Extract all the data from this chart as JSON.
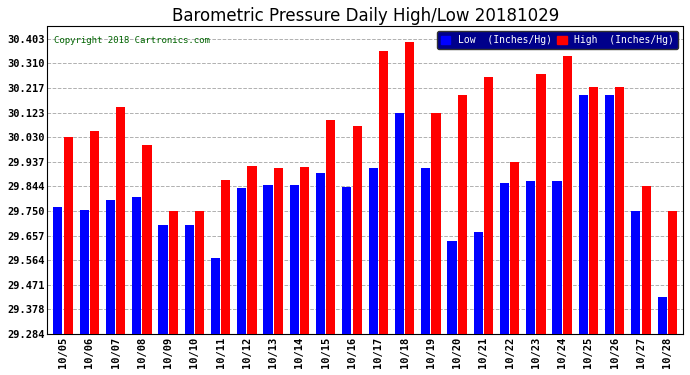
{
  "title": "Barometric Pressure Daily High/Low 20181029",
  "copyright": "Copyright 2018 Cartronics.com",
  "dates": [
    "10/05",
    "10/06",
    "10/07",
    "10/08",
    "10/09",
    "10/10",
    "10/11",
    "10/12",
    "10/13",
    "10/14",
    "10/15",
    "10/16",
    "10/17",
    "10/18",
    "10/19",
    "10/20",
    "10/21",
    "10/22",
    "10/23",
    "10/24",
    "10/25",
    "10/26",
    "10/27",
    "10/28"
  ],
  "low": [
    29.765,
    29.753,
    29.793,
    29.803,
    29.699,
    29.699,
    29.571,
    29.836,
    29.848,
    29.848,
    29.893,
    29.84,
    29.912,
    30.123,
    29.912,
    29.636,
    29.671,
    29.856,
    29.864,
    29.864,
    30.19,
    30.19,
    29.751,
    29.425
  ],
  "high": [
    30.03,
    30.055,
    30.143,
    30.0,
    29.75,
    29.75,
    29.869,
    29.92,
    29.913,
    29.918,
    30.097,
    30.072,
    30.356,
    30.39,
    30.123,
    30.19,
    30.257,
    29.937,
    30.27,
    30.34,
    30.22,
    30.22,
    29.844,
    29.75
  ],
  "low_color": "#0000ff",
  "high_color": "#ff0000",
  "bg_color": "#ffffff",
  "grid_color": "#b0b0b0",
  "ylim_min": 29.284,
  "ylim_max": 30.45,
  "yticks": [
    29.284,
    29.378,
    29.471,
    29.564,
    29.657,
    29.75,
    29.844,
    29.937,
    30.03,
    30.123,
    30.217,
    30.31,
    30.403
  ],
  "title_fontsize": 12,
  "tick_fontsize": 7.5,
  "legend_low_label": "Low  (Inches/Hg)",
  "legend_high_label": "High  (Inches/Hg)"
}
